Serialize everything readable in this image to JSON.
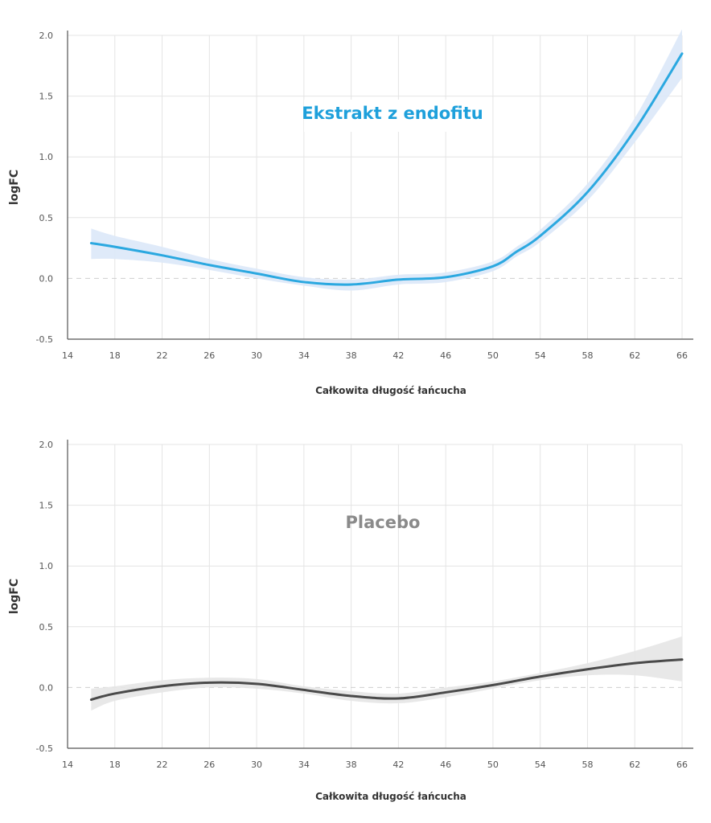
{
  "chart_data": [
    {
      "type": "line",
      "title": "Ekstrakt z endofitu",
      "xlabel": "Całkowita długość łańcucha",
      "ylabel": "logFC",
      "xlim": [
        14,
        66
      ],
      "ylim": [
        -0.5,
        2.0
      ],
      "xticks": [
        "14",
        "18",
        "22",
        "26",
        "30",
        "34",
        "38",
        "42",
        "46",
        "50",
        "54",
        "58",
        "62",
        "66"
      ],
      "yticks": [
        "2.0",
        "1.5",
        "1.0",
        "0.5",
        "0.0",
        "-0.5"
      ],
      "grid": true,
      "reference_line_y": 0,
      "colors": {
        "line": "#2ba8e0",
        "band": "#dbe8f8",
        "title": "#1ea0db"
      },
      "series": [
        {
          "x": [
            16,
            18,
            22,
            26,
            30,
            34,
            38,
            42,
            46,
            50,
            52,
            54,
            58,
            62,
            66
          ],
          "values": [
            0.29,
            0.26,
            0.19,
            0.11,
            0.04,
            -0.03,
            -0.05,
            -0.01,
            0.01,
            0.1,
            0.22,
            0.35,
            0.71,
            1.22,
            1.85
          ],
          "ci_lower": [
            0.16,
            0.16,
            0.13,
            0.07,
            0.0,
            -0.06,
            -0.1,
            -0.05,
            -0.03,
            0.06,
            0.18,
            0.3,
            0.64,
            1.12,
            1.65
          ],
          "ci_upper": [
            0.41,
            0.35,
            0.26,
            0.16,
            0.08,
            0.01,
            -0.01,
            0.03,
            0.05,
            0.14,
            0.26,
            0.4,
            0.78,
            1.32,
            2.05
          ]
        }
      ]
    },
    {
      "type": "line",
      "title": "Placebo",
      "xlabel": "Całkowita długość łańcucha",
      "ylabel": "logFC",
      "xlim": [
        14,
        66
      ],
      "ylim": [
        -0.5,
        2.0
      ],
      "xticks": [
        "14",
        "18",
        "22",
        "26",
        "30",
        "34",
        "38",
        "42",
        "46",
        "50",
        "54",
        "58",
        "62",
        "66"
      ],
      "yticks": [
        "2.0",
        "1.5",
        "1.0",
        "0.5",
        "0.0",
        "-0.5"
      ],
      "grid": true,
      "reference_line_y": 0,
      "colors": {
        "line": "#4a4a4a",
        "band": "#e6e6e6",
        "title": "#8a8a8a"
      },
      "series": [
        {
          "x": [
            16,
            18,
            22,
            26,
            30,
            34,
            38,
            42,
            46,
            50,
            54,
            58,
            62,
            66
          ],
          "values": [
            -0.1,
            -0.05,
            0.01,
            0.04,
            0.03,
            -0.02,
            -0.07,
            -0.09,
            -0.04,
            0.02,
            0.09,
            0.15,
            0.2,
            0.23
          ],
          "ci_lower": [
            -0.19,
            -0.11,
            -0.04,
            0.0,
            -0.01,
            -0.05,
            -0.11,
            -0.13,
            -0.08,
            -0.01,
            0.06,
            0.1,
            0.1,
            0.05
          ],
          "ci_upper": [
            -0.01,
            0.01,
            0.06,
            0.08,
            0.07,
            0.01,
            -0.03,
            -0.05,
            0.0,
            0.05,
            0.12,
            0.2,
            0.3,
            0.42
          ]
        }
      ]
    }
  ]
}
